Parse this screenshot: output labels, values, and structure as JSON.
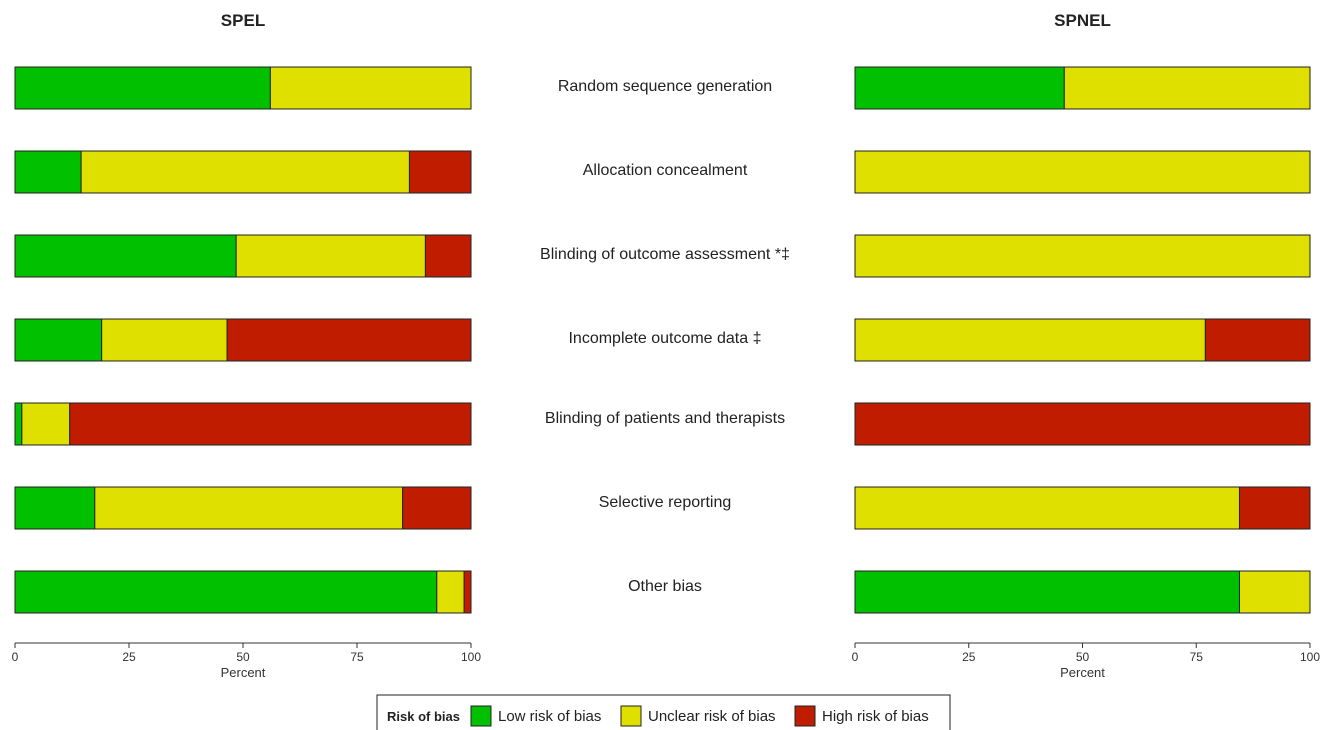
{
  "chart_data": [
    {
      "type": "bar",
      "orientation": "horizontal",
      "stacked": true,
      "title": "SPEL",
      "xlabel": "Percent",
      "xlim": [
        0,
        100
      ],
      "xticks": [
        0,
        25,
        50,
        75,
        100
      ],
      "grid": false,
      "categories": [
        "Random sequence generation",
        "Allocation concealment",
        "Blinding of outcome assessment *‡",
        "Incomplete outcome data ‡",
        "Blinding of patients and therapists",
        "Selective reporting",
        "Other bias"
      ],
      "series": [
        {
          "name": "Low risk of bias",
          "color": "#00c000",
          "values": [
            56,
            14.5,
            48.5,
            19,
            1.5,
            17.5,
            92.5
          ]
        },
        {
          "name": "Unclear risk of bias",
          "color": "#e0e000",
          "values": [
            44,
            72,
            41.5,
            27.5,
            10.5,
            67.5,
            6
          ]
        },
        {
          "name": "High risk of bias",
          "color": "#bf1c00",
          "values": [
            0,
            13.5,
            10,
            53.5,
            88,
            15,
            1.5
          ]
        }
      ]
    },
    {
      "type": "bar",
      "orientation": "horizontal",
      "stacked": true,
      "title": "SPNEL",
      "xlabel": "Percent",
      "xlim": [
        0,
        100
      ],
      "xticks": [
        0,
        25,
        50,
        75,
        100
      ],
      "grid": false,
      "categories": [
        "Random sequence generation",
        "Allocation concealment",
        "Blinding of outcome assessment *‡",
        "Incomplete outcome data ‡",
        "Blinding of patients and therapists",
        "Selective reporting",
        "Other bias"
      ],
      "series": [
        {
          "name": "Low risk of bias",
          "color": "#00c000",
          "values": [
            46,
            0,
            0,
            0,
            0,
            0,
            84.5
          ]
        },
        {
          "name": "Unclear risk of bias",
          "color": "#e0e000",
          "values": [
            54,
            100,
            100,
            77,
            0,
            84.5,
            15.5
          ]
        },
        {
          "name": "High risk of bias",
          "color": "#bf1c00",
          "values": [
            0,
            0,
            0,
            23,
            100,
            15.5,
            0
          ]
        }
      ]
    }
  ],
  "legend": {
    "title": "Risk of bias",
    "items": [
      {
        "label": "Low risk of bias",
        "color": "#00c000"
      },
      {
        "label": "Unclear risk of bias",
        "color": "#e0e000"
      },
      {
        "label": "High risk of bias",
        "color": "#bf1c00"
      }
    ]
  }
}
